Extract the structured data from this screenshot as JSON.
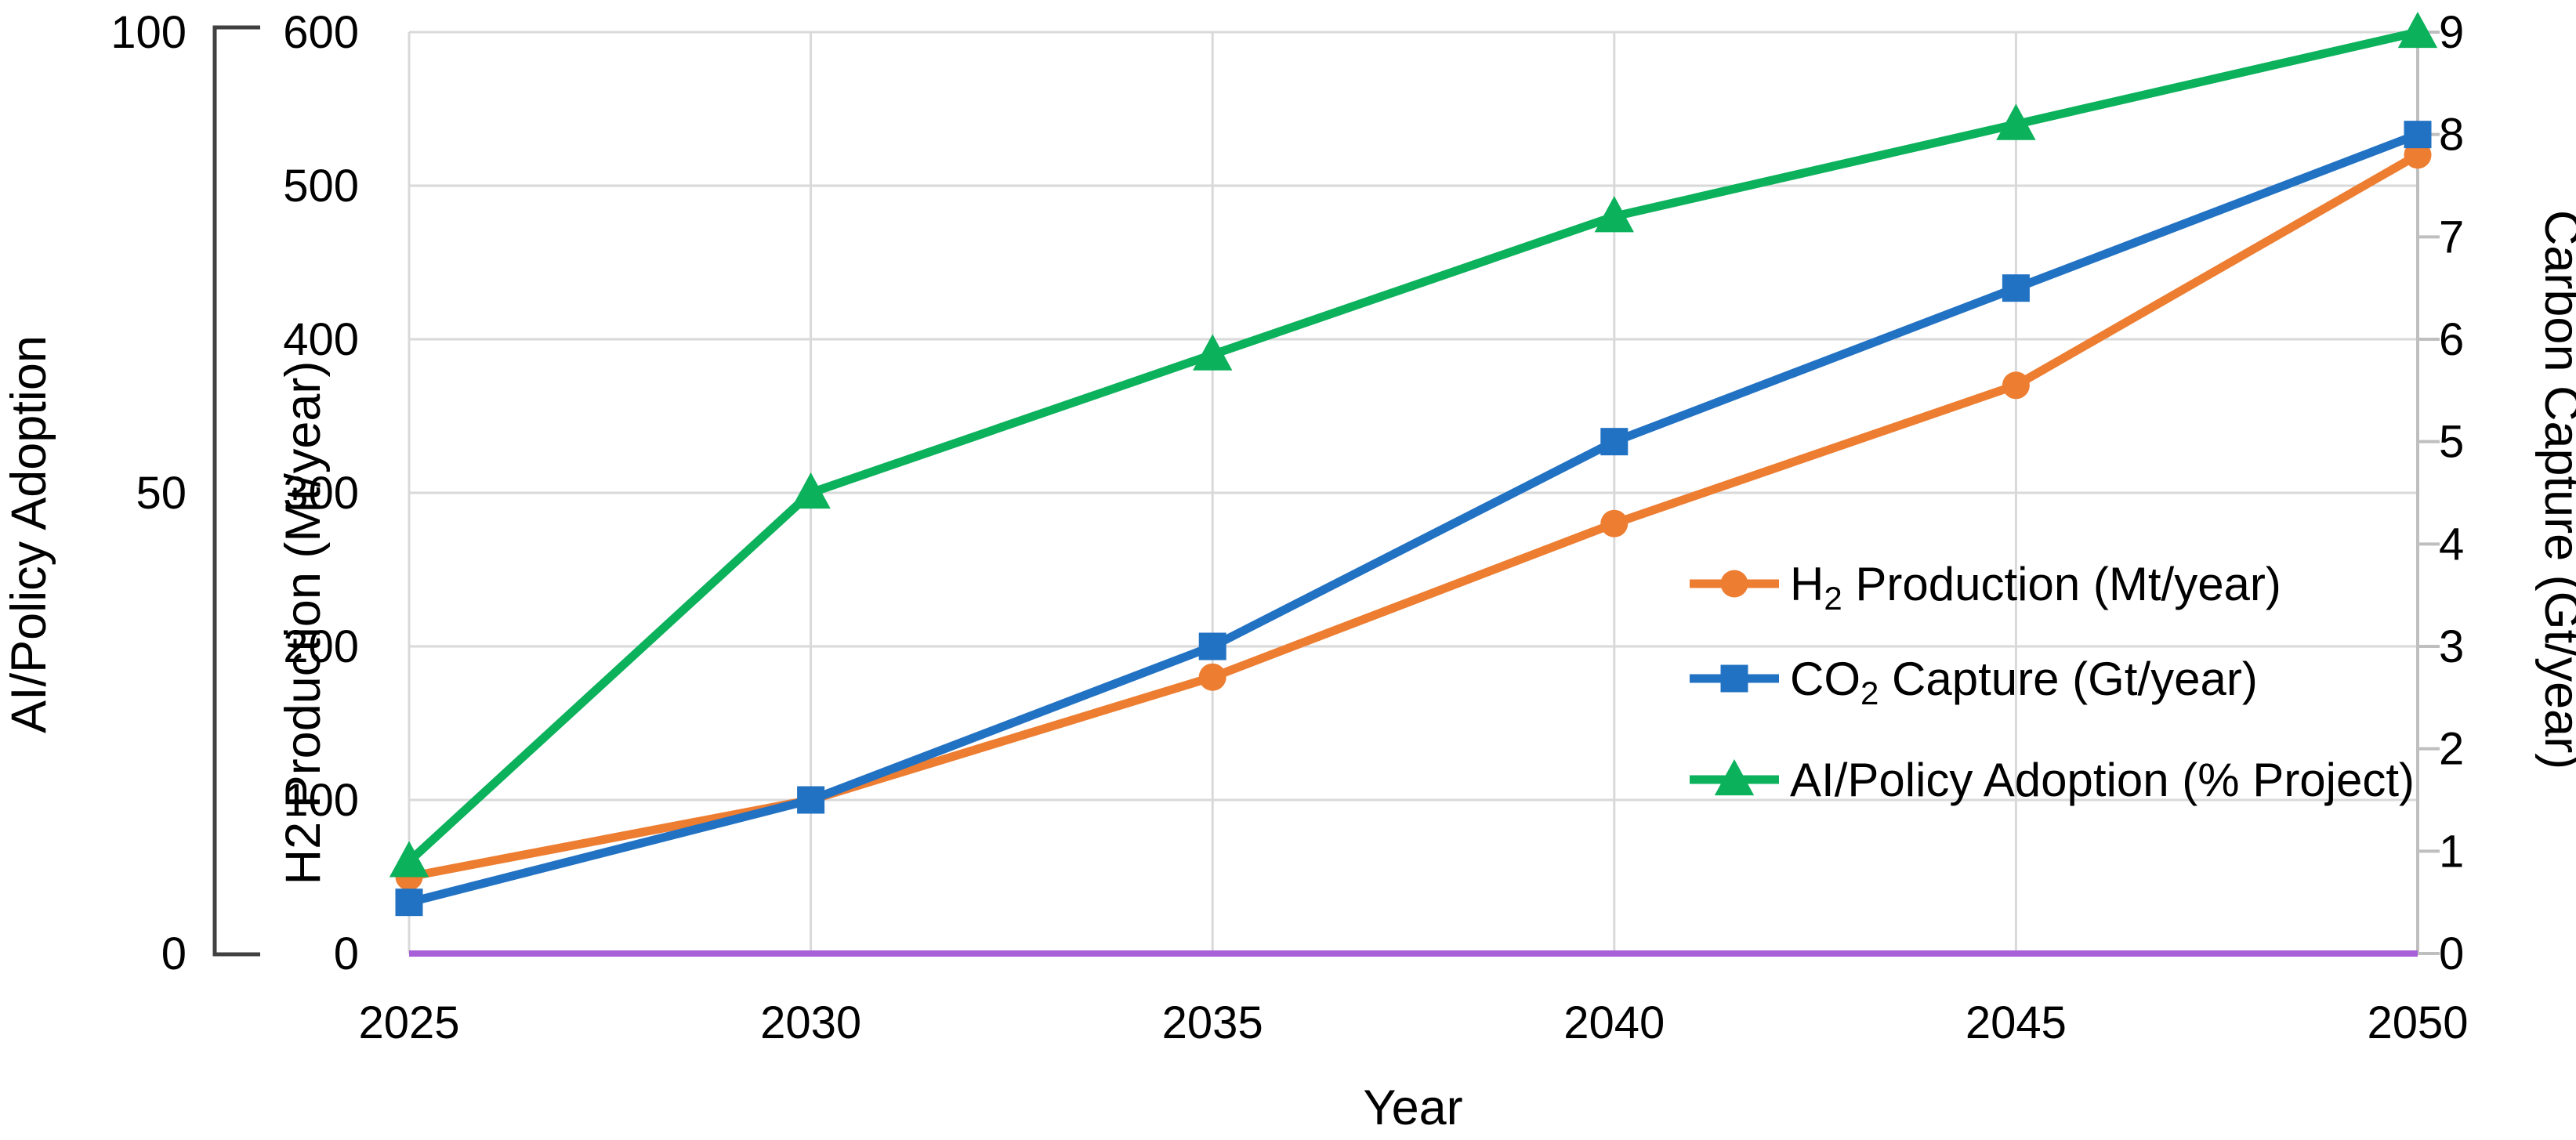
{
  "chart_data": {
    "type": "line",
    "title": "",
    "xlabel": "Year",
    "x": [
      2025,
      2030,
      2035,
      2040,
      2045,
      2050
    ],
    "grid": true,
    "legend_position": "inside-right",
    "series": [
      {
        "name": "H2 Production (Mt/year)",
        "legend": {
          "pre": "H",
          "sub": "2",
          "post": " Production (Mt/year)"
        },
        "axis": "h2",
        "marker": "circle",
        "color": "#ED7D31",
        "values": [
          50,
          100,
          180,
          280,
          370,
          520
        ]
      },
      {
        "name": "CO2 Capture (Gt/year)",
        "legend": {
          "pre": "CO",
          "sub": "2",
          "post": " Capture (Gt/year)"
        },
        "axis": "cc",
        "marker": "square",
        "color": "#2272C3",
        "values": [
          0.5,
          1.5,
          3,
          5,
          6.5,
          8
        ]
      },
      {
        "name": "AI/Policy Adoption (% Project)",
        "legend": {
          "pre": "AI/Policy Adoption (% Project)",
          "sub": "",
          "post": ""
        },
        "axis": "ai",
        "marker": "triangle",
        "color": "#0CB15C",
        "values": [
          10,
          50,
          65,
          80,
          90,
          100
        ]
      }
    ],
    "baseline_series": {
      "color": "#A760D8",
      "value": 0
    },
    "axes": {
      "ai": {
        "label": "AI/Policy Adoption",
        "min": 0,
        "max": 100,
        "ticks": [
          0,
          50,
          100
        ]
      },
      "h2": {
        "label": "H2 Production (Mt/year)",
        "min": 0,
        "max": 600,
        "ticks": [
          0,
          100,
          200,
          300,
          400,
          500,
          600
        ]
      },
      "cc": {
        "label": "Carbon Capture (Gt/year)",
        "min": 0,
        "max": 9,
        "ticks": [
          0,
          1,
          2,
          3,
          4,
          5,
          6,
          7,
          8,
          9
        ]
      }
    }
  },
  "colors": {
    "gridline": "#D9D9D9",
    "axis_line": "#BFBFBF",
    "bracket": "#404040",
    "text": "#000000",
    "background": "#FFFFFF"
  }
}
